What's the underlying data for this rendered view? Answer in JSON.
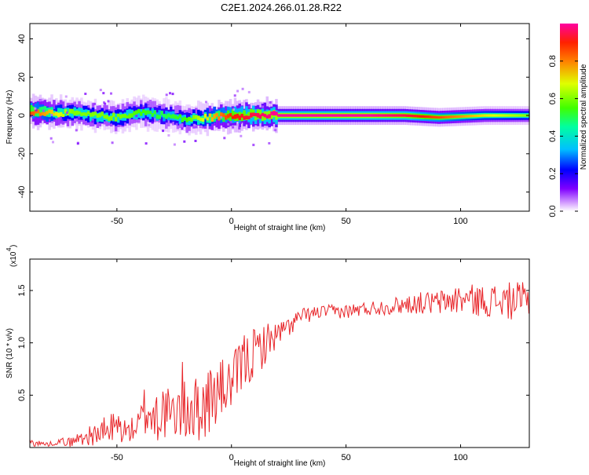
{
  "title": "C2E1.2024.266.01.28.R22",
  "chart_data": [
    {
      "type": "heatmap",
      "name": "spectrogram",
      "title": "C2E1.2024.266.01.28.R22",
      "xlabel": "Height of straight line (km)",
      "ylabel": "Frequency (Hz)",
      "xlim": [
        -88,
        130
      ],
      "ylim": [
        -50,
        48
      ],
      "xticks": [
        -50,
        0,
        50,
        100
      ],
      "yticks": [
        -40,
        -20,
        0,
        20,
        40
      ],
      "colorbar": {
        "label": "Normalized spectral amplitude",
        "range": [
          0,
          1
        ],
        "ticks": [
          "0.0",
          "0.2",
          "0.4",
          "0.6",
          "0.8"
        ],
        "tick_values": [
          0.0,
          0.2,
          0.4,
          0.6,
          0.8
        ],
        "colormap": "rainbow"
      },
      "ridge": {
        "description_x": [
          -88,
          -70,
          -50,
          -40,
          -30,
          -20,
          0,
          20,
          40,
          60,
          75,
          90,
          110,
          130
        ],
        "center_freq": [
          2,
          1,
          -1,
          2,
          0,
          -2,
          0,
          0,
          0,
          0,
          0,
          -1,
          0,
          0
        ],
        "peak_amplitude": [
          0.85,
          0.6,
          0.6,
          0.55,
          0.5,
          0.55,
          0.9,
          1.0,
          1.0,
          1.0,
          0.95,
          0.85,
          0.7,
          0.6
        ]
      }
    },
    {
      "type": "line",
      "name": "snr",
      "xlabel": "Height of straight line (km)",
      "ylabel": "SNR (10 * v/v)",
      "scale_label": "(x10",
      "scale_exponent": "4",
      "xlim": [
        -88,
        130
      ],
      "ylim": [
        0,
        1.8
      ],
      "xticks": [
        -50,
        0,
        50,
        100
      ],
      "yticks": [
        "0.5",
        "1.0",
        "1.5"
      ],
      "ytick_values": [
        0.5,
        1.0,
        1.5
      ],
      "series": [
        {
          "color": "#e8262a",
          "envelope_x": [
            -88,
            -80,
            -75,
            -70,
            -65,
            -60,
            -55,
            -50,
            -45,
            -40,
            -37,
            -35,
            -30,
            -25,
            -20,
            -15,
            -10,
            -5,
            0,
            5,
            10,
            15,
            20,
            25,
            30,
            40,
            50,
            60,
            70,
            80,
            90,
            100,
            110,
            120,
            130
          ],
          "envelope_mean": [
            0.05,
            0.03,
            0.06,
            0.05,
            0.1,
            0.12,
            0.15,
            0.2,
            0.15,
            0.22,
            0.4,
            0.3,
            0.35,
            0.3,
            0.45,
            0.35,
            0.45,
            0.55,
            0.6,
            0.8,
            0.9,
            1.0,
            1.08,
            1.15,
            1.25,
            1.3,
            1.3,
            1.33,
            1.35,
            1.38,
            1.38,
            1.42,
            1.4,
            1.4,
            1.4
          ],
          "envelope_amp": [
            0.04,
            0.02,
            0.03,
            0.05,
            0.08,
            0.1,
            0.15,
            0.18,
            0.1,
            0.15,
            0.35,
            0.3,
            0.3,
            0.2,
            0.5,
            0.3,
            0.35,
            0.3,
            0.25,
            0.3,
            0.25,
            0.2,
            0.12,
            0.1,
            0.08,
            0.06,
            0.07,
            0.07,
            0.08,
            0.1,
            0.12,
            0.15,
            0.15,
            0.18,
            0.18
          ]
        }
      ]
    }
  ]
}
